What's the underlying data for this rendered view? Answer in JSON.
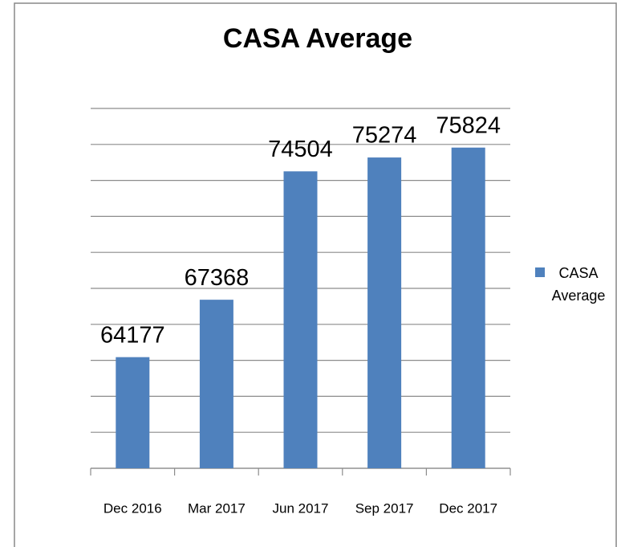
{
  "chart_data": {
    "type": "bar",
    "title": "CASA Average",
    "categories": [
      "Dec 2016",
      "Mar 2017",
      "Jun 2017",
      "Sep 2017",
      "Dec 2017"
    ],
    "series": [
      {
        "name": "CASA Average",
        "color": "#4f81bd",
        "values": [
          64177,
          67368,
          74504,
          75274,
          75824
        ]
      }
    ],
    "ylim": [
      58000,
      78000
    ],
    "yticks": [
      58000,
      60000,
      62000,
      64000,
      66000,
      68000,
      70000,
      72000,
      74000,
      76000,
      78000
    ],
    "grid": true,
    "legend": "right"
  }
}
